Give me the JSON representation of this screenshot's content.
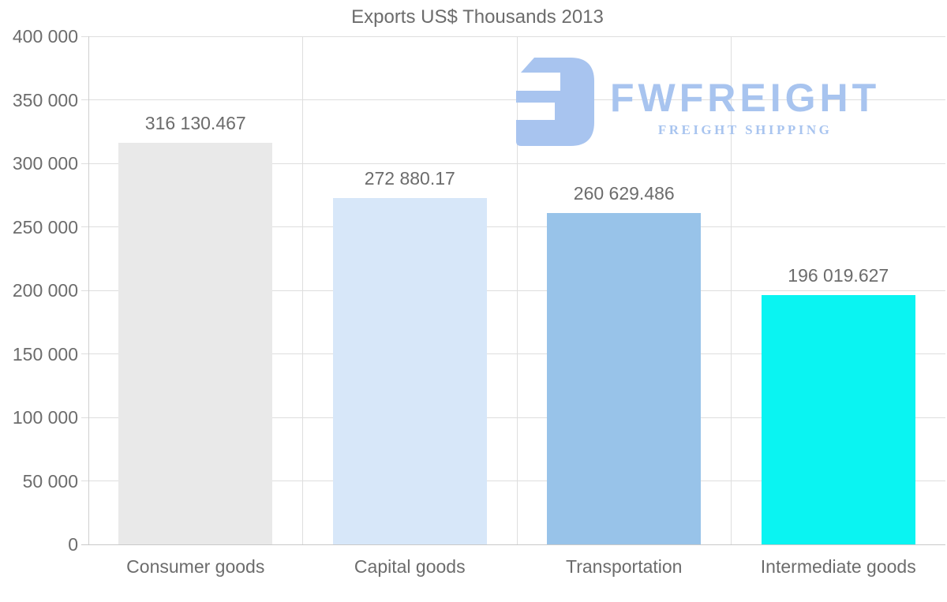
{
  "chart_data": {
    "type": "bar",
    "title": "Exports US$ Thousands 2013",
    "categories": [
      "Consumer goods",
      "Capital goods",
      "Transportation",
      "Intermediate goods"
    ],
    "values": [
      316130.467,
      272880.17,
      260629.486,
      196019.627
    ],
    "value_labels": [
      "316 130.467",
      "272 880.17",
      "260 629.486",
      "196 019.627"
    ],
    "bar_colors": [
      "#e9e9e9",
      "#d7e7f9",
      "#98c3e9",
      "#0af4f2"
    ],
    "xlabel": "",
    "ylabel": "",
    "ylim": [
      0,
      400000
    ],
    "ytick_step": 50000,
    "ytick_labels": [
      "0",
      "50 000",
      "100 000",
      "150 000",
      "200 000",
      "250 000",
      "300 000",
      "350 000",
      "400 000"
    ],
    "grid": true,
    "legend": false
  },
  "watermark": {
    "brand": "FWFREIGHT",
    "tagline": "FREIGHT SHIPPING",
    "color": "#a8c4ef"
  },
  "colors": {
    "text": "#6c6c6c",
    "gridline": "#dedede",
    "baseline": "#c9c9c9",
    "axis": "#cfcfcf"
  }
}
